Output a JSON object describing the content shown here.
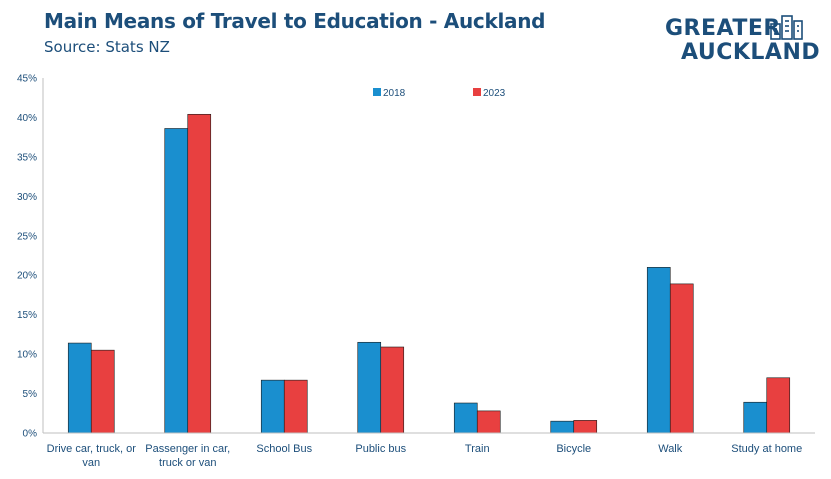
{
  "header": {
    "title": "Main Means of Travel to Education - Auckland",
    "subtitle": "Source: Stats NZ"
  },
  "logo": {
    "line1": "GREATER",
    "line2": "AUCKLAND",
    "icon": "city-skyline-icon"
  },
  "colors": {
    "series_2018": "#1a8fcf",
    "series_2023": "#e84040",
    "text": "#1c4e7a",
    "axis": "#bfbfbf"
  },
  "chart_data": {
    "type": "bar",
    "categories": [
      [
        "Drive car, truck, or",
        "van"
      ],
      [
        "Passenger in car,",
        "truck or van"
      ],
      [
        "School Bus"
      ],
      [
        "Public bus"
      ],
      [
        "Train"
      ],
      [
        "Bicycle"
      ],
      [
        "Walk"
      ],
      [
        "Study at home"
      ]
    ],
    "series": [
      {
        "name": "2018",
        "values": [
          11.4,
          38.6,
          6.7,
          11.5,
          3.8,
          1.5,
          21.0,
          3.9
        ]
      },
      {
        "name": "2023",
        "values": [
          10.5,
          40.4,
          6.7,
          10.9,
          2.8,
          1.6,
          18.9,
          7.0
        ]
      }
    ],
    "ylim": [
      0,
      45
    ],
    "yticks": [
      "0%",
      "5%",
      "10%",
      "15%",
      "20%",
      "25%",
      "30%",
      "35%",
      "40%",
      "45%"
    ],
    "ytick_values": [
      0,
      5,
      10,
      15,
      20,
      25,
      30,
      35,
      40,
      45
    ],
    "legend_position": "top-center",
    "grid": false
  }
}
